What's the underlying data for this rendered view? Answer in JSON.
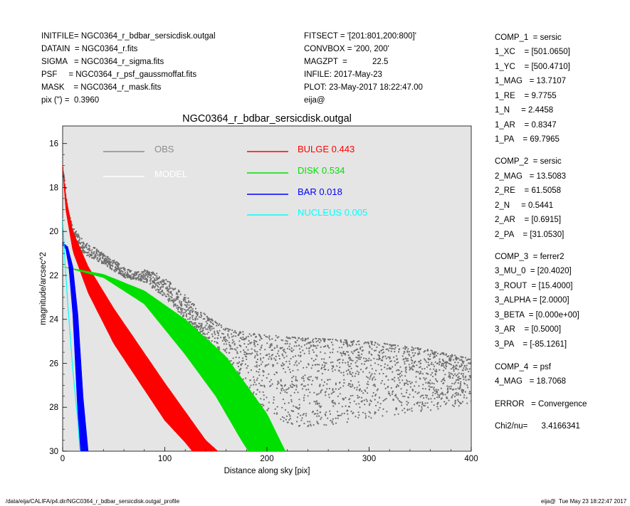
{
  "header_left": [
    "INITFILE= NGC0364_r_bdbar_sersicdisk.outgal",
    "DATAIN  = NGC0364_r.fits",
    "SIGMA   = NGC0364_r_sigma.fits",
    "PSF     = NGC0364_r_psf_gaussmoffat.fits",
    "MASK    = NGC0364_r_mask.fits",
    "pix (\") =  0.3960"
  ],
  "header_mid": [
    "FITSECT = '[201:801,200:800]'",
    "CONVBOX = '200, 200'",
    "MAGZPT  =           22.5",
    "INFILE: 2017-May-23",
    "PLOT: 23-May-2017 18:22:47.00",
    "eija@"
  ],
  "components": [
    "COMP_1  = sersic",
    "1_XC    = [501.0650]",
    "1_YC    = [500.4710]",
    "1_MAG   = 13.7107",
    "1_RE    = 9.7755",
    "1_N     = 2.4458",
    "1_AR    = 0.8347",
    "1_PA    = 69.7965",
    "COMP_2  = sersic",
    "2_MAG   = 13.5083",
    "2_RE    = 61.5058",
    "2_N     = 0.5441",
    "2_AR    = [0.6915]",
    "2_PA    = [31.0530]",
    "COMP_3  = ferrer2",
    "3_MU_0  = [20.4020]",
    "3_ROUT  = [15.4000]",
    "3_ALPHA = [2.0000]",
    "3_BETA  = [0.000e+00]",
    "3_AR    = [0.5000]",
    "3_PA    = [-85.1261]",
    "COMP_4  = psf",
    "4_MAG   = 18.7068",
    "ERROR   = Convergence",
    "Chi2/nu=      3.4166341"
  ],
  "footer_left": "/data/eija/CALIFA/p4.dir/NGC0364_r_bdbar_sersicdisk.outgal_profile",
  "footer_right": "eija@  Tue May 23 18:22:47 2017",
  "chart_data": {
    "type": "scatter",
    "title": "NGC0364_r_bdbar_sersicdisk.outgal",
    "xlabel": "Distance along sky [pix]",
    "ylabel": "magnitude/arcsec^2",
    "xlim": [
      0,
      400
    ],
    "ylim": [
      30,
      15.2
    ],
    "y_inverted": true,
    "x_ticks": [
      0,
      100,
      200,
      300,
      400
    ],
    "y_ticks": [
      16,
      18,
      20,
      22,
      24,
      26,
      28,
      30
    ],
    "background": "#e5e5e5",
    "legend": [
      {
        "label": "OBS",
        "color": "#8c8c8c"
      },
      {
        "label": "MODEL",
        "color": "#ffffff"
      },
      {
        "label": "BULGE",
        "value": "0.443",
        "color": "#ff0000"
      },
      {
        "label": "DISK",
        "value": "0.534",
        "color": "#00e000"
      },
      {
        "label": "BAR",
        "value": "0.018",
        "color": "#0000ff"
      },
      {
        "label": "NUCLEUS",
        "value": "0.005",
        "color": "#00ffff"
      }
    ],
    "series": [
      {
        "name": "OBS",
        "color": "#6e6e6e",
        "upper": [
          [
            0,
            16.9
          ],
          [
            2,
            17.6
          ],
          [
            5,
            18.9
          ],
          [
            10,
            19.8
          ],
          [
            20,
            20.4
          ],
          [
            40,
            21.0
          ],
          [
            60,
            21.6
          ],
          [
            70,
            21.85
          ],
          [
            80,
            21.75
          ],
          [
            90,
            21.85
          ],
          [
            100,
            22.1
          ],
          [
            120,
            22.9
          ],
          [
            140,
            23.8
          ],
          [
            160,
            24.4
          ],
          [
            180,
            24.6
          ],
          [
            220,
            24.8
          ],
          [
            300,
            25.0
          ],
          [
            350,
            25.3
          ],
          [
            400,
            25.8
          ]
        ],
        "lower": [
          [
            0,
            17.2
          ],
          [
            5,
            19.3
          ],
          [
            10,
            20.4
          ],
          [
            20,
            21.0
          ],
          [
            40,
            21.5
          ],
          [
            60,
            22.1
          ],
          [
            80,
            22.3
          ],
          [
            100,
            23.0
          ],
          [
            120,
            24.0
          ],
          [
            140,
            25.0
          ],
          [
            160,
            26.4
          ],
          [
            180,
            27.6
          ],
          [
            200,
            28.4
          ],
          [
            240,
            29.0
          ],
          [
            300,
            28.5
          ],
          [
            350,
            28.2
          ],
          [
            400,
            27.9
          ]
        ]
      },
      {
        "name": "BULGE",
        "color": "#ff0000",
        "upper": [
          [
            0,
            16.9
          ],
          [
            3,
            18.4
          ],
          [
            10,
            20.0
          ],
          [
            25,
            21.6
          ],
          [
            50,
            23.5
          ],
          [
            100,
            26.9
          ],
          [
            140,
            29.5
          ],
          [
            152,
            30.0
          ]
        ],
        "lower": [
          [
            0,
            17.1
          ],
          [
            3,
            19.0
          ],
          [
            10,
            20.9
          ],
          [
            25,
            22.8
          ],
          [
            50,
            25.1
          ],
          [
            100,
            28.6
          ],
          [
            120,
            29.6
          ],
          [
            127,
            30.0
          ]
        ]
      },
      {
        "name": "DISK",
        "color": "#00e000",
        "upper": [
          [
            0,
            21.6
          ],
          [
            40,
            21.95
          ],
          [
            80,
            22.7
          ],
          [
            120,
            24.0
          ],
          [
            160,
            25.7
          ],
          [
            200,
            28.3
          ],
          [
            218,
            30.0
          ]
        ],
        "lower": [
          [
            0,
            21.6
          ],
          [
            40,
            22.1
          ],
          [
            80,
            23.3
          ],
          [
            120,
            25.6
          ],
          [
            150,
            27.5
          ],
          [
            175,
            29.5
          ],
          [
            182,
            30.0
          ]
        ]
      },
      {
        "name": "BAR",
        "color": "#0000ff",
        "upper": [
          [
            0,
            20.5
          ],
          [
            5,
            20.7
          ],
          [
            10,
            21.6
          ],
          [
            15,
            23.8
          ],
          [
            20,
            27.5
          ],
          [
            25,
            30.0
          ]
        ],
        "lower": [
          [
            0,
            20.6
          ],
          [
            3,
            20.8
          ],
          [
            6,
            21.6
          ],
          [
            10,
            23.8
          ],
          [
            14,
            27.5
          ],
          [
            17,
            30.0
          ]
        ]
      },
      {
        "name": "NUCLEUS",
        "color": "#00ffff",
        "points": [
          [
            0,
            19.4
          ],
          [
            2,
            21.2
          ],
          [
            5,
            23.3
          ],
          [
            10,
            26.3
          ],
          [
            15,
            28.7
          ],
          [
            17,
            30.0
          ]
        ]
      }
    ]
  }
}
